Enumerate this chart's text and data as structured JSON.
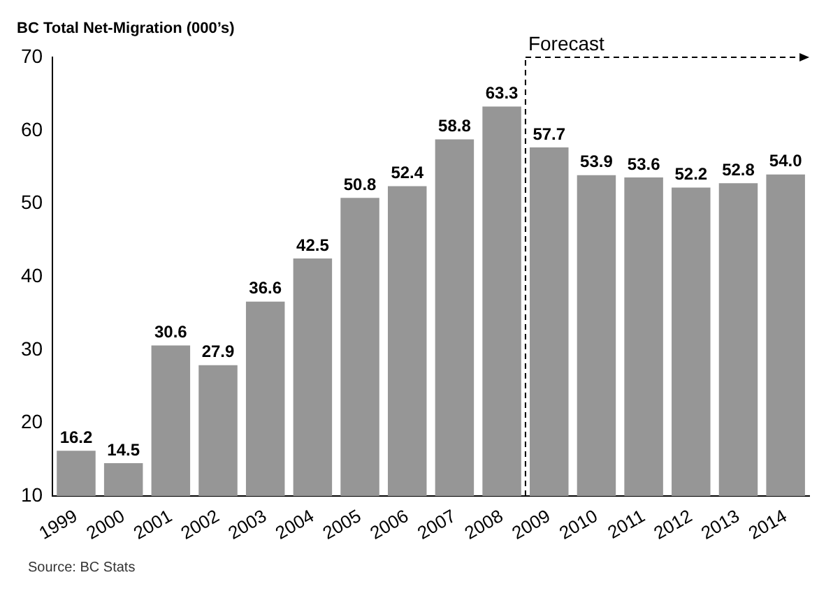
{
  "chart_data": {
    "type": "bar",
    "title": "BC Total Net-Migration (000’s)",
    "categories": [
      "1999",
      "2000",
      "2001",
      "2002",
      "2003",
      "2004",
      "2005",
      "2006",
      "2007",
      "2008",
      "2009",
      "2010",
      "2011",
      "2012",
      "2013",
      "2014"
    ],
    "values": [
      16.2,
      14.5,
      30.6,
      27.9,
      36.6,
      42.5,
      50.8,
      52.4,
      58.8,
      63.3,
      57.7,
      53.9,
      53.6,
      52.2,
      52.8,
      54.0
    ],
    "value_labels": [
      "16.2",
      "14.5",
      "30.6",
      "27.9",
      "36.6",
      "42.5",
      "50.8",
      "52.4",
      "58.8",
      "63.3",
      "57.7",
      "53.9",
      "53.6",
      "52.2",
      "52.8",
      "54.0"
    ],
    "color": "#969696",
    "ylim": [
      10,
      70
    ],
    "yticks": [
      10,
      20,
      30,
      40,
      50,
      60,
      70
    ],
    "grid": false,
    "legend": false,
    "ref_lines": [
      {
        "axis": "x",
        "value": "2009",
        "label": "Forecast",
        "line_style": "dashed"
      }
    ],
    "annotations": [
      "Source: BC Stats"
    ]
  }
}
